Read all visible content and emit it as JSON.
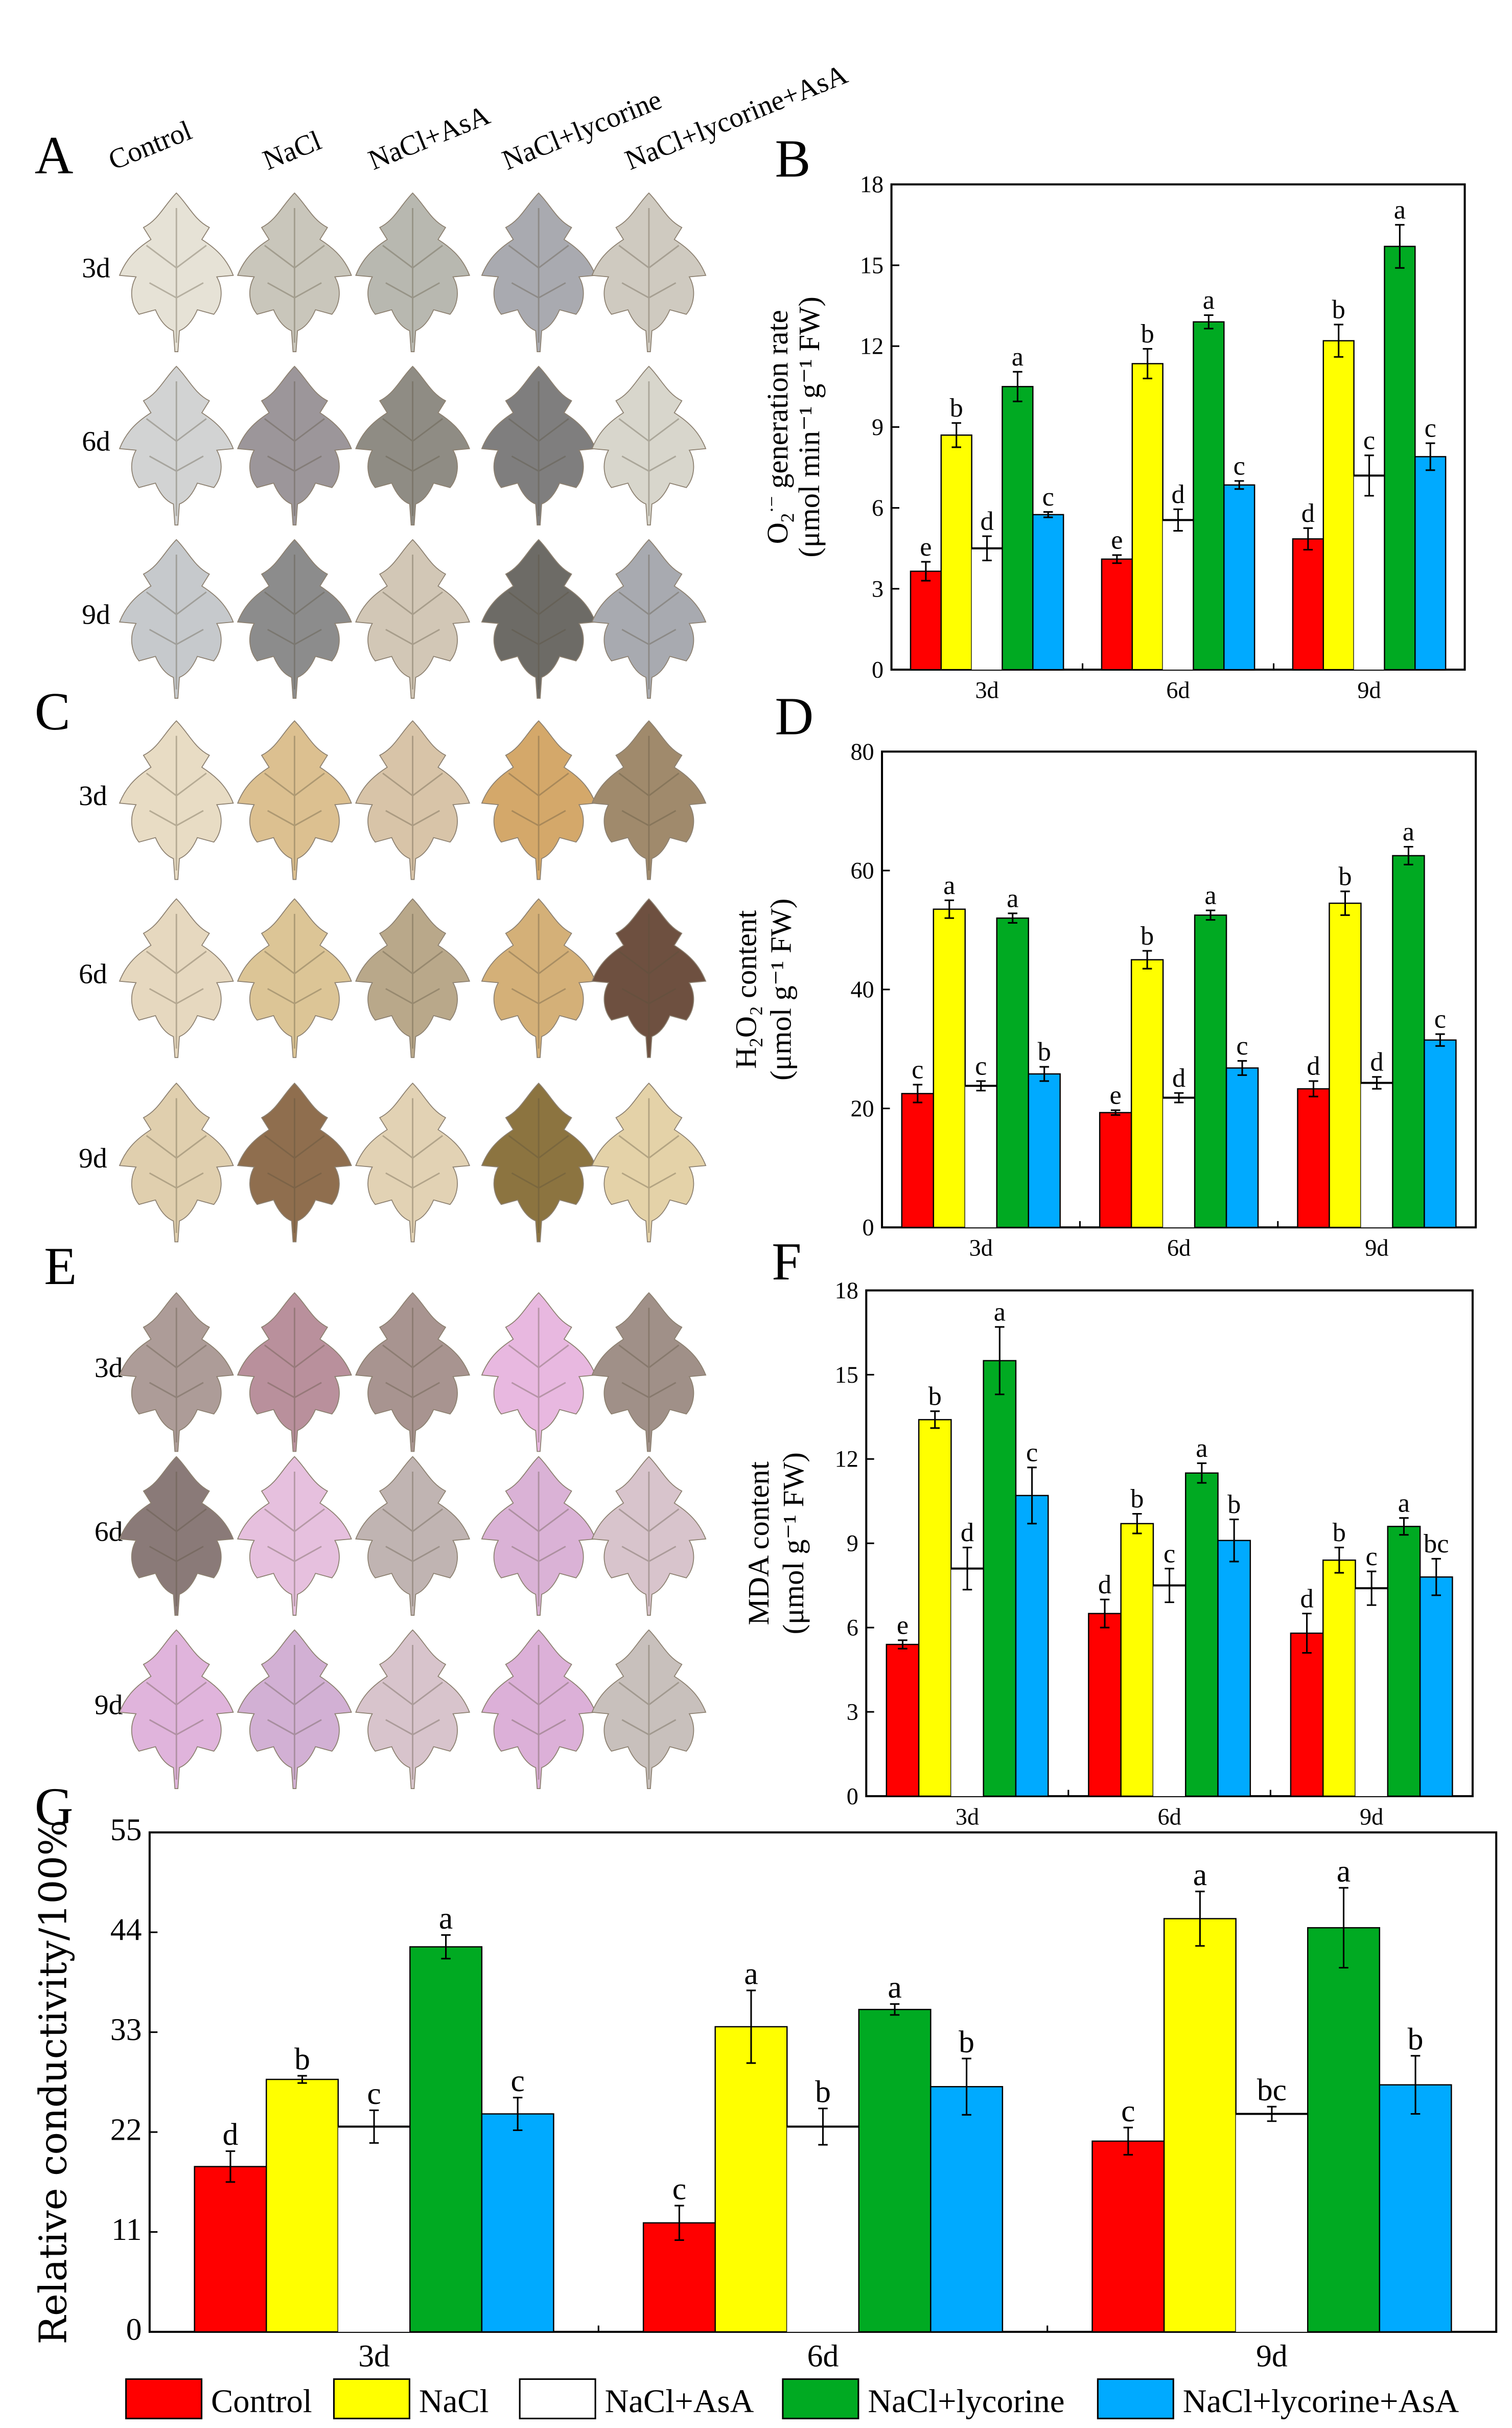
{
  "panels": {
    "A": "A",
    "B": "B",
    "C": "C",
    "D": "D",
    "E": "E",
    "F": "F",
    "G": "G"
  },
  "treatments": [
    "Control",
    "NaCl",
    "NaCl+AsA",
    "NaCl+lycorine",
    "NaCl+lycorine+AsA"
  ],
  "days": [
    "3d",
    "6d",
    "9d"
  ],
  "colors": {
    "Control": "#ff0000",
    "NaCl": "#ffff00",
    "NaCl+AsA": "#ffffff",
    "NaCl+lycorine": "#00aa22",
    "NaCl+lycorine+AsA": "#00aaff"
  },
  "leaf_colors": {
    "A": [
      [
        "#e6e2d6",
        "#c9c6bb",
        "#b8b8b0",
        "#a9aab0",
        "#cfcac0"
      ],
      [
        "#d2d3d3",
        "#9c969a",
        "#8f8c84",
        "#7f7e7e",
        "#d8d6cc"
      ],
      [
        "#c6c9cc",
        "#8c8c8c",
        "#d2c7b6",
        "#6d6b66",
        "#a8aab0"
      ]
    ],
    "C": [
      [
        "#e8dcc4",
        "#dcc090",
        "#d8c4a8",
        "#d4a86a",
        "#a08a6c"
      ],
      [
        "#e6d8bf",
        "#dcc596",
        "#b9a88a",
        "#d4b078",
        "#6e5040"
      ],
      [
        "#e0cfae",
        "#8f6e4e",
        "#e2d2b4",
        "#8c7440",
        "#e4d2a8"
      ]
    ],
    "E": [
      [
        "#ad9c98",
        "#b9909c",
        "#a89490",
        "#e8b8e0",
        "#a09088"
      ],
      [
        "#8a7a78",
        "#e6c0de",
        "#c0b4b2",
        "#dab2d6",
        "#d8c4cc"
      ],
      [
        "#e0b4dc",
        "#d2b0d4",
        "#d8c4cc",
        "#dcb0d8",
        "#c8c0bc"
      ]
    ]
  },
  "legend": [
    "Control",
    "NaCl",
    "NaCl+AsA",
    "NaCl+lycorine",
    "NaCl+lycorine+AsA"
  ],
  "chart_data": [
    {
      "id": "B",
      "type": "bar",
      "categories": [
        "3d",
        "6d",
        "9d"
      ],
      "ylabel_parts": {
        "main": "O",
        "sub": "2",
        "sup": "·−",
        "rest": " generation rate",
        "line2": "(μmol min⁻¹ g⁻¹ FW)"
      },
      "ylim": [
        0,
        18
      ],
      "yticks": [
        "0",
        "3",
        "6",
        "9",
        "12",
        "15",
        "18"
      ],
      "series": [
        {
          "name": "Control",
          "values": [
            3.65,
            4.1,
            4.85
          ],
          "err": [
            0.35,
            0.15,
            0.4
          ],
          "letters": [
            "e",
            "e",
            "d"
          ]
        },
        {
          "name": "NaCl",
          "values": [
            8.7,
            11.35,
            12.2
          ],
          "err": [
            0.45,
            0.55,
            0.6
          ],
          "letters": [
            "b",
            "b",
            "b"
          ]
        },
        {
          "name": "NaCl+AsA",
          "values": [
            4.5,
            5.55,
            7.2
          ],
          "err": [
            0.45,
            0.4,
            0.75
          ],
          "letters": [
            "d",
            "d",
            "c"
          ]
        },
        {
          "name": "NaCl+lycorine",
          "values": [
            10.5,
            12.9,
            15.7
          ],
          "err": [
            0.55,
            0.25,
            0.8
          ],
          "letters": [
            "a",
            "a",
            "a"
          ]
        },
        {
          "name": "NaCl+lycorine+AsA",
          "values": [
            5.75,
            6.85,
            7.9
          ],
          "err": [
            0.1,
            0.15,
            0.5
          ],
          "letters": [
            "c",
            "c",
            "c"
          ]
        }
      ]
    },
    {
      "id": "D",
      "type": "bar",
      "categories": [
        "3d",
        "6d",
        "9d"
      ],
      "ylabel_parts": {
        "main": "H",
        "sub": "2",
        "sup": "",
        "rest": "O₂ content",
        "line2": "(μmol g⁻¹ FW)"
      },
      "ylim": [
        0,
        80
      ],
      "yticks": [
        "0",
        "20",
        "40",
        "60",
        "80"
      ],
      "series": [
        {
          "name": "Control",
          "values": [
            22.5,
            19.3,
            23.3
          ],
          "err": [
            1.5,
            0.4,
            1.3
          ],
          "letters": [
            "c",
            "e",
            "d"
          ]
        },
        {
          "name": "NaCl",
          "values": [
            53.5,
            45,
            54.5
          ],
          "err": [
            1.5,
            1.5,
            2
          ],
          "letters": [
            "a",
            "b",
            "b"
          ]
        },
        {
          "name": "NaCl+AsA",
          "values": [
            23.8,
            21.8,
            24.3
          ],
          "err": [
            0.8,
            0.8,
            1
          ],
          "letters": [
            "c",
            "d",
            "d"
          ]
        },
        {
          "name": "NaCl+lycorine",
          "values": [
            52,
            52.5,
            62.5
          ],
          "err": [
            0.8,
            0.8,
            1.5
          ],
          "letters": [
            "a",
            "a",
            "a"
          ]
        },
        {
          "name": "NaCl+lycorine+AsA",
          "values": [
            25.8,
            26.8,
            31.5
          ],
          "err": [
            1.2,
            1.2,
            1
          ],
          "letters": [
            "b",
            "c",
            "c"
          ]
        }
      ]
    },
    {
      "id": "F",
      "type": "bar",
      "categories": [
        "3d",
        "6d",
        "9d"
      ],
      "ylabel_parts": {
        "main": "MDA content",
        "sub": "",
        "sup": "",
        "rest": "",
        "line2": "(μmol g⁻¹ FW)"
      },
      "ylim": [
        0,
        18
      ],
      "yticks": [
        "0",
        "3",
        "6",
        "9",
        "12",
        "15",
        "18"
      ],
      "series": [
        {
          "name": "Control",
          "values": [
            5.4,
            6.5,
            5.8
          ],
          "err": [
            0.15,
            0.5,
            0.7
          ],
          "letters": [
            "e",
            "d",
            "d"
          ]
        },
        {
          "name": "NaCl",
          "values": [
            13.4,
            9.7,
            8.4
          ],
          "err": [
            0.3,
            0.35,
            0.45
          ],
          "letters": [
            "b",
            "b",
            "b"
          ]
        },
        {
          "name": "NaCl+AsA",
          "values": [
            8.1,
            7.5,
            7.4
          ],
          "err": [
            0.75,
            0.6,
            0.6
          ],
          "letters": [
            "d",
            "c",
            "c"
          ]
        },
        {
          "name": "NaCl+lycorine",
          "values": [
            15.5,
            11.5,
            9.6
          ],
          "err": [
            1.2,
            0.35,
            0.3
          ],
          "letters": [
            "a",
            "a",
            "a"
          ]
        },
        {
          "name": "NaCl+lycorine+AsA",
          "values": [
            10.7,
            9.1,
            7.8
          ],
          "err": [
            1,
            0.75,
            0.65
          ],
          "letters": [
            "c",
            "b",
            "bc"
          ]
        }
      ]
    },
    {
      "id": "G",
      "type": "bar",
      "categories": [
        "3d",
        "6d",
        "9d"
      ],
      "ylabel_parts": {
        "main": "Relative conductivity/100%",
        "sub": "",
        "sup": "",
        "rest": "",
        "line2": ""
      },
      "ylim": [
        0,
        55
      ],
      "yticks": [
        "0",
        "11",
        "22",
        "33",
        "44",
        "55"
      ],
      "series": [
        {
          "name": "Control",
          "values": [
            18.2,
            12,
            21
          ],
          "err": [
            1.7,
            1.9,
            1.5
          ],
          "letters": [
            "d",
            "c",
            "c"
          ]
        },
        {
          "name": "NaCl",
          "values": [
            27.8,
            33.6,
            45.5
          ],
          "err": [
            0.4,
            4,
            3
          ],
          "letters": [
            "b",
            "a",
            "a"
          ]
        },
        {
          "name": "NaCl+AsA",
          "values": [
            22.6,
            22.6,
            24
          ],
          "err": [
            1.8,
            2,
            0.8
          ],
          "letters": [
            "c",
            "b",
            "bc"
          ]
        },
        {
          "name": "NaCl+lycorine",
          "values": [
            42.4,
            35.5,
            44.5
          ],
          "err": [
            1.3,
            0.6,
            4.4
          ],
          "letters": [
            "a",
            "a",
            "a"
          ]
        },
        {
          "name": "NaCl+lycorine+AsA",
          "values": [
            24,
            27,
            27.2
          ],
          "err": [
            1.8,
            3.1,
            3.2
          ],
          "letters": [
            "c",
            "b",
            "b"
          ]
        }
      ]
    }
  ]
}
